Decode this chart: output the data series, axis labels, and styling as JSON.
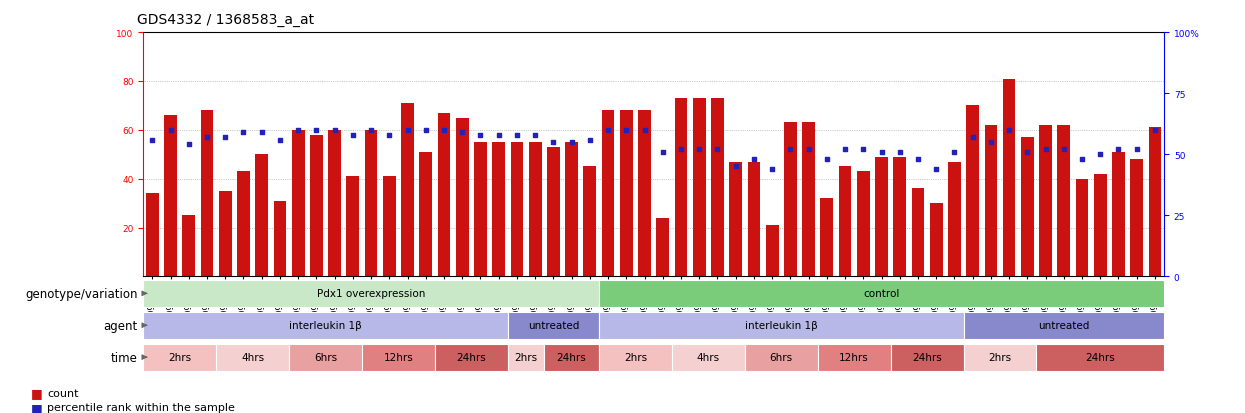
{
  "title": "GDS4332 / 1368583_a_at",
  "samples": [
    "GSM998740",
    "GSM998753",
    "GSM998766",
    "GSM998774",
    "GSM998729",
    "GSM998754",
    "GSM998767",
    "GSM998775",
    "GSM998741",
    "GSM998755",
    "GSM998768",
    "GSM998776",
    "GSM998730",
    "GSM998742",
    "GSM998747",
    "GSM998777",
    "GSM998731",
    "GSM998748",
    "GSM998756",
    "GSM998769",
    "GSM998732",
    "GSM998749",
    "GSM998757",
    "GSM998778",
    "GSM998733",
    "GSM998758",
    "GSM998770",
    "GSM998779",
    "GSM998734",
    "GSM998743",
    "GSM998759",
    "GSM998780",
    "GSM998735",
    "GSM998750",
    "GSM998760",
    "GSM998782",
    "GSM998744",
    "GSM998751",
    "GSM998761",
    "GSM998771",
    "GSM998736",
    "GSM998745",
    "GSM998762",
    "GSM998781",
    "GSM998737",
    "GSM998752",
    "GSM998763",
    "GSM998772",
    "GSM998738",
    "GSM998764",
    "GSM998773",
    "GSM998783",
    "GSM998739",
    "GSM998746",
    "GSM998765",
    "GSM998784"
  ],
  "bar_values": [
    34,
    66,
    25,
    68,
    35,
    43,
    50,
    31,
    60,
    58,
    60,
    41,
    60,
    41,
    71,
    51,
    67,
    65,
    55,
    55,
    55,
    55,
    53,
    55,
    45,
    68,
    68,
    68,
    24,
    73,
    73,
    73,
    47,
    47,
    21,
    63,
    63,
    32,
    45,
    43,
    49,
    49,
    36,
    30,
    47,
    70,
    62,
    81,
    57,
    62,
    62,
    40,
    42,
    51,
    48,
    61
  ],
  "dot_values": [
    56,
    60,
    54,
    57,
    57,
    59,
    59,
    56,
    60,
    60,
    60,
    58,
    60,
    58,
    60,
    60,
    60,
    59,
    58,
    58,
    58,
    58,
    55,
    55,
    56,
    60,
    60,
    60,
    51,
    52,
    52,
    52,
    45,
    48,
    44,
    52,
    52,
    48,
    52,
    52,
    51,
    51,
    48,
    44,
    51,
    57,
    55,
    60,
    51,
    52,
    52,
    48,
    50,
    52,
    52,
    60
  ],
  "genotype_groups": [
    {
      "label": "Pdx1 overexpression",
      "start": 0,
      "end": 25,
      "color": "#c8e8c8"
    },
    {
      "label": "control",
      "start": 25,
      "end": 56,
      "color": "#7acc7a"
    }
  ],
  "agent_groups": [
    {
      "label": "interleukin 1β",
      "start": 0,
      "end": 20,
      "color": "#b8b8e8"
    },
    {
      "label": "untreated",
      "start": 20,
      "end": 25,
      "color": "#8888cc"
    },
    {
      "label": "interleukin 1β",
      "start": 25,
      "end": 45,
      "color": "#b8b8e8"
    },
    {
      "label": "untreated",
      "start": 45,
      "end": 56,
      "color": "#8888cc"
    }
  ],
  "time_groups": [
    {
      "label": "2hrs",
      "start": 0,
      "end": 4,
      "color": "#f5c0c0"
    },
    {
      "label": "4hrs",
      "start": 4,
      "end": 8,
      "color": "#f5d0d0"
    },
    {
      "label": "6hrs",
      "start": 8,
      "end": 12,
      "color": "#e8a0a0"
    },
    {
      "label": "12hrs",
      "start": 12,
      "end": 16,
      "color": "#e08080"
    },
    {
      "label": "24hrs",
      "start": 16,
      "end": 20,
      "color": "#cc6060"
    },
    {
      "label": "2hrs",
      "start": 20,
      "end": 22,
      "color": "#f5d0d0"
    },
    {
      "label": "24hrs",
      "start": 22,
      "end": 25,
      "color": "#cc6060"
    },
    {
      "label": "2hrs",
      "start": 25,
      "end": 29,
      "color": "#f5c0c0"
    },
    {
      "label": "4hrs",
      "start": 29,
      "end": 33,
      "color": "#f5d0d0"
    },
    {
      "label": "6hrs",
      "start": 33,
      "end": 37,
      "color": "#e8a0a0"
    },
    {
      "label": "12hrs",
      "start": 37,
      "end": 41,
      "color": "#e08080"
    },
    {
      "label": "24hrs",
      "start": 41,
      "end": 45,
      "color": "#cc6060"
    },
    {
      "label": "2hrs",
      "start": 45,
      "end": 49,
      "color": "#f5d0d0"
    },
    {
      "label": "24hrs",
      "start": 49,
      "end": 56,
      "color": "#cc6060"
    }
  ],
  "ylim": [
    0,
    100
  ],
  "yticks_left": [
    20,
    40,
    60,
    80,
    100
  ],
  "yticks_right_vals": [
    0,
    25,
    50,
    75,
    100
  ],
  "yticks_right_labels": [
    "0",
    "25",
    "50",
    "75",
    "100%"
  ],
  "bar_color": "#cc1111",
  "dot_color": "#2222bb",
  "bg_color": "#ffffff",
  "grid_color": "#999999",
  "title_fontsize": 10,
  "label_fontsize": 7.5,
  "tick_fontsize": 6.5,
  "annot_label_fontsize": 8.5,
  "legend_fontsize": 8
}
